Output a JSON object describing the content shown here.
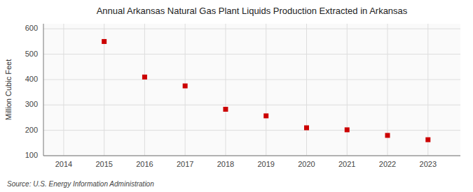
{
  "chart_data": {
    "type": "scatter",
    "title": "Annual Arkansas Natural Gas Plant Liquids Production Extracted in Arkansas",
    "ylabel": "Million Cubic Feet",
    "source": "Source: U.S. Energy Information Administration",
    "x": [
      2015,
      2016,
      2017,
      2018,
      2019,
      2020,
      2021,
      2022,
      2023
    ],
    "values": [
      550,
      410,
      375,
      283,
      257,
      210,
      202,
      180,
      163
    ],
    "error": 6,
    "xlim": [
      2013.5,
      2023.8
    ],
    "xticks": [
      2014,
      2015,
      2016,
      2017,
      2018,
      2019,
      2020,
      2021,
      2022,
      2023
    ],
    "ylim": [
      100,
      620
    ],
    "yticks": [
      100,
      200,
      300,
      400,
      500,
      600
    ],
    "grid": true,
    "color": "#cc0000",
    "marker": "square"
  }
}
